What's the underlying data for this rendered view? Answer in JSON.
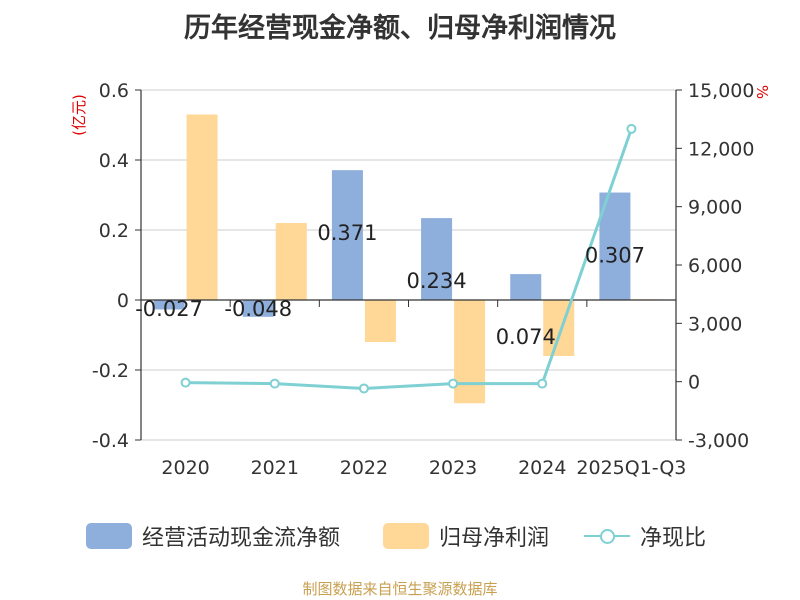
{
  "title": "历年经营现金净额、归母净利润情况",
  "left_axis_unit": "(亿元)",
  "right_axis_unit": "%",
  "legend": {
    "operating_cash_flow": "经营活动现金流净额",
    "net_profit": "归母净利润",
    "ratio": "净现比"
  },
  "source": "制图数据来自恒生聚源数据库",
  "colors": {
    "operating_cash_flow": "#8eaedb",
    "net_profit": "#ffd797",
    "ratio": "#7fd0d3"
  },
  "chart_data": {
    "type": "bar",
    "title": "历年经营现金净额、归母净利润情况",
    "categories": [
      "2020",
      "2021",
      "2022",
      "2023",
      "2024",
      "2025Q1-Q3"
    ],
    "left_ticks": [
      "0.6",
      "0.4",
      "0.2",
      "0",
      "-0.2",
      "-0.4"
    ],
    "right_ticks": [
      "15,000",
      "12,000",
      "9,000",
      "6,000",
      "3,000",
      "0",
      "-3,000"
    ],
    "ylim_left": [
      -0.4,
      0.6
    ],
    "ylim_right": [
      -3000,
      15000
    ],
    "grid": true,
    "legend_position": "bottom",
    "series": [
      {
        "name": "经营活动现金流净额",
        "axis": "left",
        "kind": "bar",
        "values": [
          -0.027,
          -0.048,
          0.371,
          0.234,
          0.074,
          0.307
        ],
        "labels": [
          "-0.027",
          "-0.048",
          "0.371",
          "0.234",
          "0.074",
          "0.307"
        ]
      },
      {
        "name": "归母净利润",
        "axis": "left",
        "kind": "bar",
        "values": [
          0.53,
          0.22,
          -0.12,
          -0.295,
          -0.16,
          0.002
        ]
      },
      {
        "name": "净现比",
        "axis": "right",
        "kind": "line",
        "values": [
          -50,
          -100,
          -350,
          -100,
          -100,
          13000
        ]
      }
    ]
  }
}
